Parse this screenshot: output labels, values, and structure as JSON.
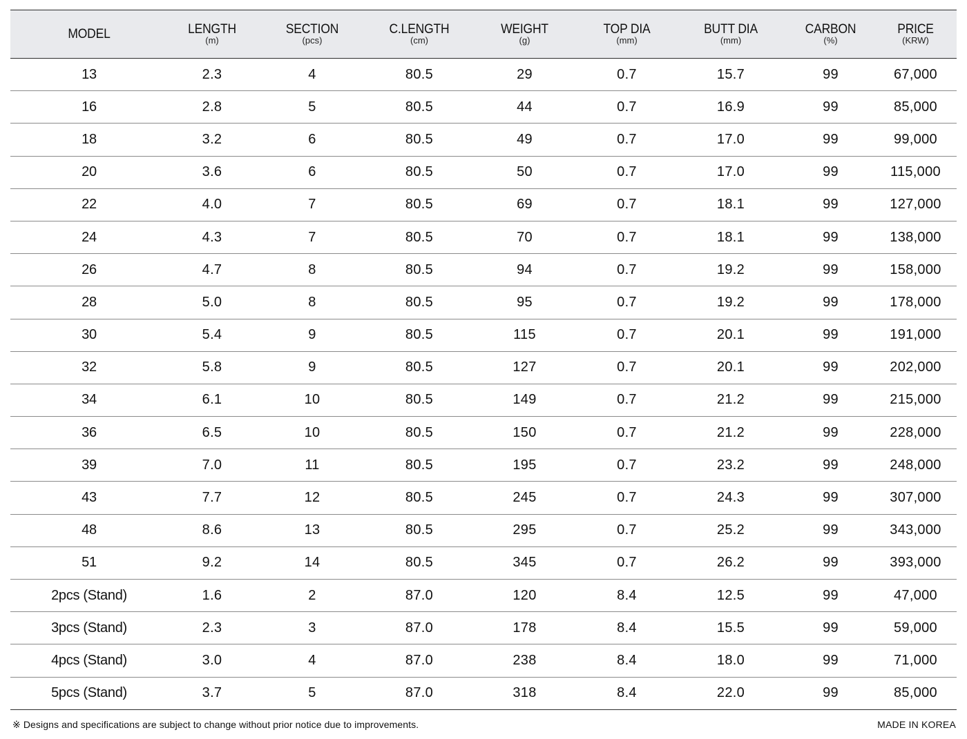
{
  "headers": [
    {
      "label": "MODEL",
      "unit": ""
    },
    {
      "label": "LENGTH",
      "unit": "(m)"
    },
    {
      "label": "SECTION",
      "unit": "(pcs)"
    },
    {
      "label": "C.LENGTH",
      "unit": "(cm)"
    },
    {
      "label": "WEIGHT",
      "unit": "(g)"
    },
    {
      "label": "TOP DIA",
      "unit": "(mm)"
    },
    {
      "label": "BUTT DIA",
      "unit": "(mm)"
    },
    {
      "label": "CARBON",
      "unit": "(%)"
    },
    {
      "label": "PRICE",
      "unit": "(KRW)"
    }
  ],
  "rows": [
    [
      "13",
      "2.3",
      "4",
      "80.5",
      "29",
      "0.7",
      "15.7",
      "99",
      "67,000"
    ],
    [
      "16",
      "2.8",
      "5",
      "80.5",
      "44",
      "0.7",
      "16.9",
      "99",
      "85,000"
    ],
    [
      "18",
      "3.2",
      "6",
      "80.5",
      "49",
      "0.7",
      "17.0",
      "99",
      "99,000"
    ],
    [
      "20",
      "3.6",
      "6",
      "80.5",
      "50",
      "0.7",
      "17.0",
      "99",
      "115,000"
    ],
    [
      "22",
      "4.0",
      "7",
      "80.5",
      "69",
      "0.7",
      "18.1",
      "99",
      "127,000"
    ],
    [
      "24",
      "4.3",
      "7",
      "80.5",
      "70",
      "0.7",
      "18.1",
      "99",
      "138,000"
    ],
    [
      "26",
      "4.7",
      "8",
      "80.5",
      "94",
      "0.7",
      "19.2",
      "99",
      "158,000"
    ],
    [
      "28",
      "5.0",
      "8",
      "80.5",
      "95",
      "0.7",
      "19.2",
      "99",
      "178,000"
    ],
    [
      "30",
      "5.4",
      "9",
      "80.5",
      "115",
      "0.7",
      "20.1",
      "99",
      "191,000"
    ],
    [
      "32",
      "5.8",
      "9",
      "80.5",
      "127",
      "0.7",
      "20.1",
      "99",
      "202,000"
    ],
    [
      "34",
      "6.1",
      "10",
      "80.5",
      "149",
      "0.7",
      "21.2",
      "99",
      "215,000"
    ],
    [
      "36",
      "6.5",
      "10",
      "80.5",
      "150",
      "0.7",
      "21.2",
      "99",
      "228,000"
    ],
    [
      "39",
      "7.0",
      "11",
      "80.5",
      "195",
      "0.7",
      "23.2",
      "99",
      "248,000"
    ],
    [
      "43",
      "7.7",
      "12",
      "80.5",
      "245",
      "0.7",
      "24.3",
      "99",
      "307,000"
    ],
    [
      "48",
      "8.6",
      "13",
      "80.5",
      "295",
      "0.7",
      "25.2",
      "99",
      "343,000"
    ],
    [
      "51",
      "9.2",
      "14",
      "80.5",
      "345",
      "0.7",
      "26.2",
      "99",
      "393,000"
    ],
    [
      "2pcs (Stand)",
      "1.6",
      "2",
      "87.0",
      "120",
      "8.4",
      "12.5",
      "99",
      "47,000"
    ],
    [
      "3pcs (Stand)",
      "2.3",
      "3",
      "87.0",
      "178",
      "8.4",
      "15.5",
      "99",
      "59,000"
    ],
    [
      "4pcs (Stand)",
      "3.0",
      "4",
      "87.0",
      "238",
      "8.4",
      "18.0",
      "99",
      "71,000"
    ],
    [
      "5pcs (Stand)",
      "3.7",
      "5",
      "87.0",
      "318",
      "8.4",
      "22.0",
      "99",
      "85,000"
    ]
  ],
  "footer": {
    "note": "※ Designs and specifications are subject to change without prior notice due to improvements.",
    "origin": "MADE IN KOREA"
  },
  "colors": {
    "header_bg": "#e9eaed",
    "rule_dark": "#2b2b2b",
    "rule_light": "#8a8a8a"
  }
}
